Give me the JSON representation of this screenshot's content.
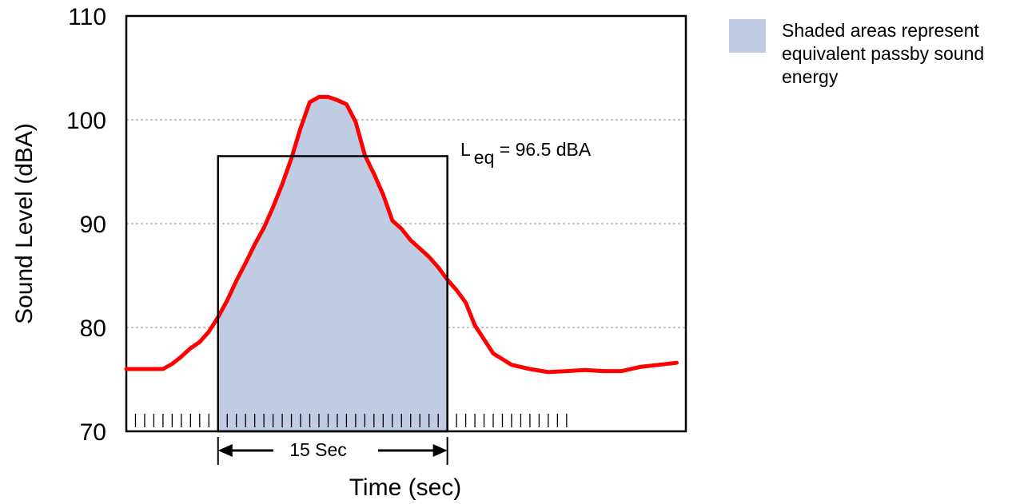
{
  "chart_data": {
    "type": "line",
    "xlabel": "Time (sec)",
    "ylabel": "Sound Level (dBA)",
    "ylim": [
      70,
      110
    ],
    "yticks": [
      70,
      80,
      90,
      100,
      110
    ],
    "grid": "horizontal dotted at 80, 90, 100",
    "series": [
      {
        "line_color": "#ff0000",
        "fill_color": "#c0cce3",
        "x": [
          0,
          1,
          2,
          2.5,
          3,
          3.5,
          4,
          4.5,
          5,
          5.5,
          6,
          6.5,
          7,
          7.5,
          8,
          8.5,
          9,
          9.5,
          10,
          10.5,
          11,
          11.5,
          12,
          12.5,
          13,
          13.5,
          14,
          14.5,
          15,
          15.5,
          16,
          16.5,
          17,
          17.5,
          18,
          18.5,
          19,
          20,
          21,
          22,
          23,
          24,
          25,
          26,
          27,
          28,
          29,
          30
        ],
        "values": [
          76,
          76,
          76,
          76.5,
          77.2,
          78,
          78.6,
          79.6,
          81,
          82.6,
          84.5,
          86.2,
          88,
          89.6,
          91.6,
          93.8,
          96.3,
          99.2,
          101.7,
          102.2,
          102.2,
          101.9,
          101.5,
          99.8,
          96.6,
          94.8,
          92.8,
          90.3,
          89.5,
          88.4,
          87.6,
          86.8,
          85.8,
          84.6,
          83.6,
          82.4,
          80.2,
          77.5,
          76.4,
          76.0,
          75.7,
          75.8,
          75.9,
          75.8,
          75.8,
          76.2,
          76.4,
          76.6
        ]
      }
    ],
    "passby_window": {
      "x_start": 5,
      "x_end": 17.5
    },
    "leq": {
      "value": 96.5,
      "label_main": "L",
      "label_sub": "eq",
      "label_rest": " = 96.5 dBA"
    },
    "duration_label": "15 Sec"
  },
  "legend": {
    "swatch_color": "#c0cce3",
    "text": "Shaded areas represent equivalent passby sound energy"
  }
}
